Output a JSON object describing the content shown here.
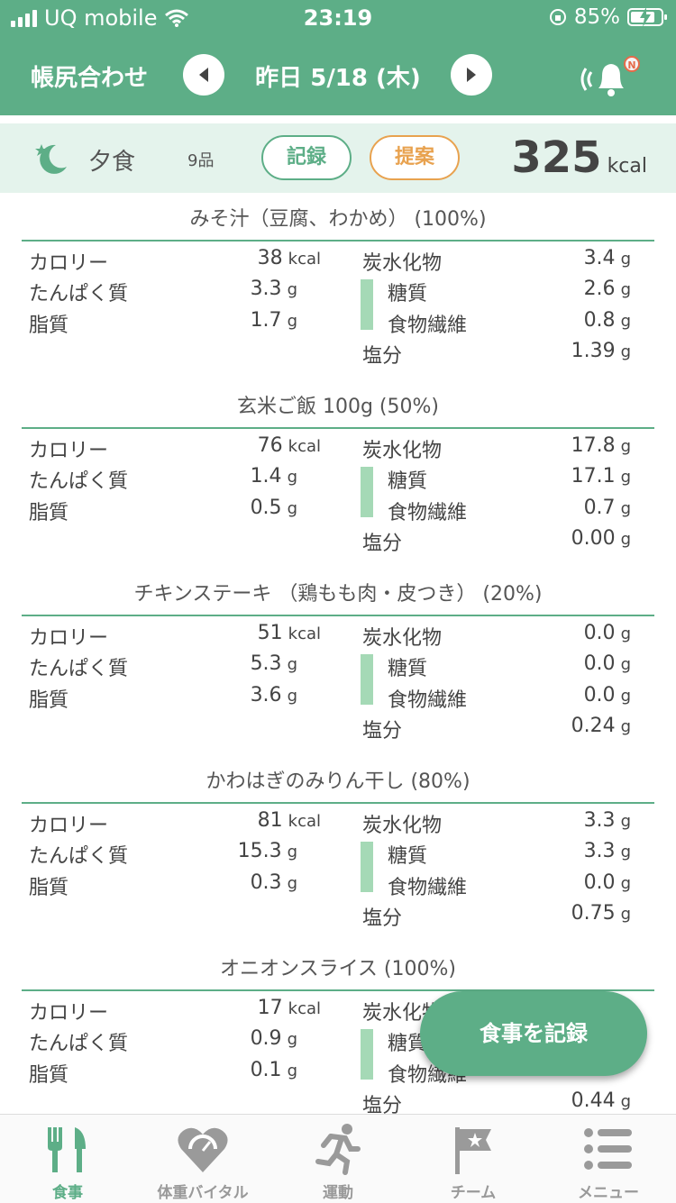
{
  "status_bar": {
    "carrier": "UQ mobile",
    "time": "23:19",
    "battery": "85%"
  },
  "header": {
    "title": "帳尻合わせ",
    "date": "昨日 5/18 (木)",
    "badge": "N"
  },
  "meal": {
    "name": "夕食",
    "count": "9品",
    "record_label": "記録",
    "suggest_label": "提案",
    "kcal_value": "325",
    "kcal_unit": "kcal"
  },
  "labels": {
    "calorie": "カロリー",
    "protein": "たんぱく質",
    "fat": "脂質",
    "carbs": "炭水化物",
    "sugar": "糖質",
    "fiber": "食物繊維",
    "salt": "塩分"
  },
  "foods": [
    {
      "title": "みそ汁（豆腐、わかめ） (100%)",
      "calorie": "38",
      "protein": "3.3",
      "fat": "1.7",
      "carbs": "3.4",
      "sugar": "2.6",
      "fiber": "0.8",
      "salt": "1.39"
    },
    {
      "title": "玄米ご飯 100g (50%)",
      "calorie": "76",
      "protein": "1.4",
      "fat": "0.5",
      "carbs": "17.8",
      "sugar": "17.1",
      "fiber": "0.7",
      "salt": "0.00"
    },
    {
      "title": "チキンステーキ （鶏もも肉・皮つき） (20%)",
      "calorie": "51",
      "protein": "5.3",
      "fat": "3.6",
      "carbs": "0.0",
      "sugar": "0.0",
      "fiber": "0.0",
      "salt": "0.24"
    },
    {
      "title": "かわはぎのみりん干し (80%)",
      "calorie": "81",
      "protein": "15.3",
      "fat": "0.3",
      "carbs": "3.3",
      "sugar": "3.3",
      "fiber": "0.0",
      "salt": "0.75"
    },
    {
      "title": "オニオンスライス (100%)",
      "calorie": "17",
      "protein": "0.9",
      "fat": "0.1",
      "carbs": "",
      "sugar": "",
      "fiber": "",
      "salt": "0.44"
    }
  ],
  "units": {
    "kcal": "kcal",
    "g": "g"
  },
  "fab_label": "食事を記録",
  "tabs": [
    {
      "label": "食事",
      "icon": "fork-knife-icon",
      "active": true
    },
    {
      "label": "体重バイタル",
      "icon": "heart-scale-icon",
      "active": false
    },
    {
      "label": "運動",
      "icon": "runner-icon",
      "active": false
    },
    {
      "label": "チーム",
      "icon": "flag-icon",
      "active": false
    },
    {
      "label": "メニュー",
      "icon": "menu-icon",
      "active": false
    }
  ],
  "colors": {
    "primary": "#5dae87",
    "accent": "#e8a24f",
    "light": "#e4f3ec",
    "bar": "#a5d9b6"
  }
}
